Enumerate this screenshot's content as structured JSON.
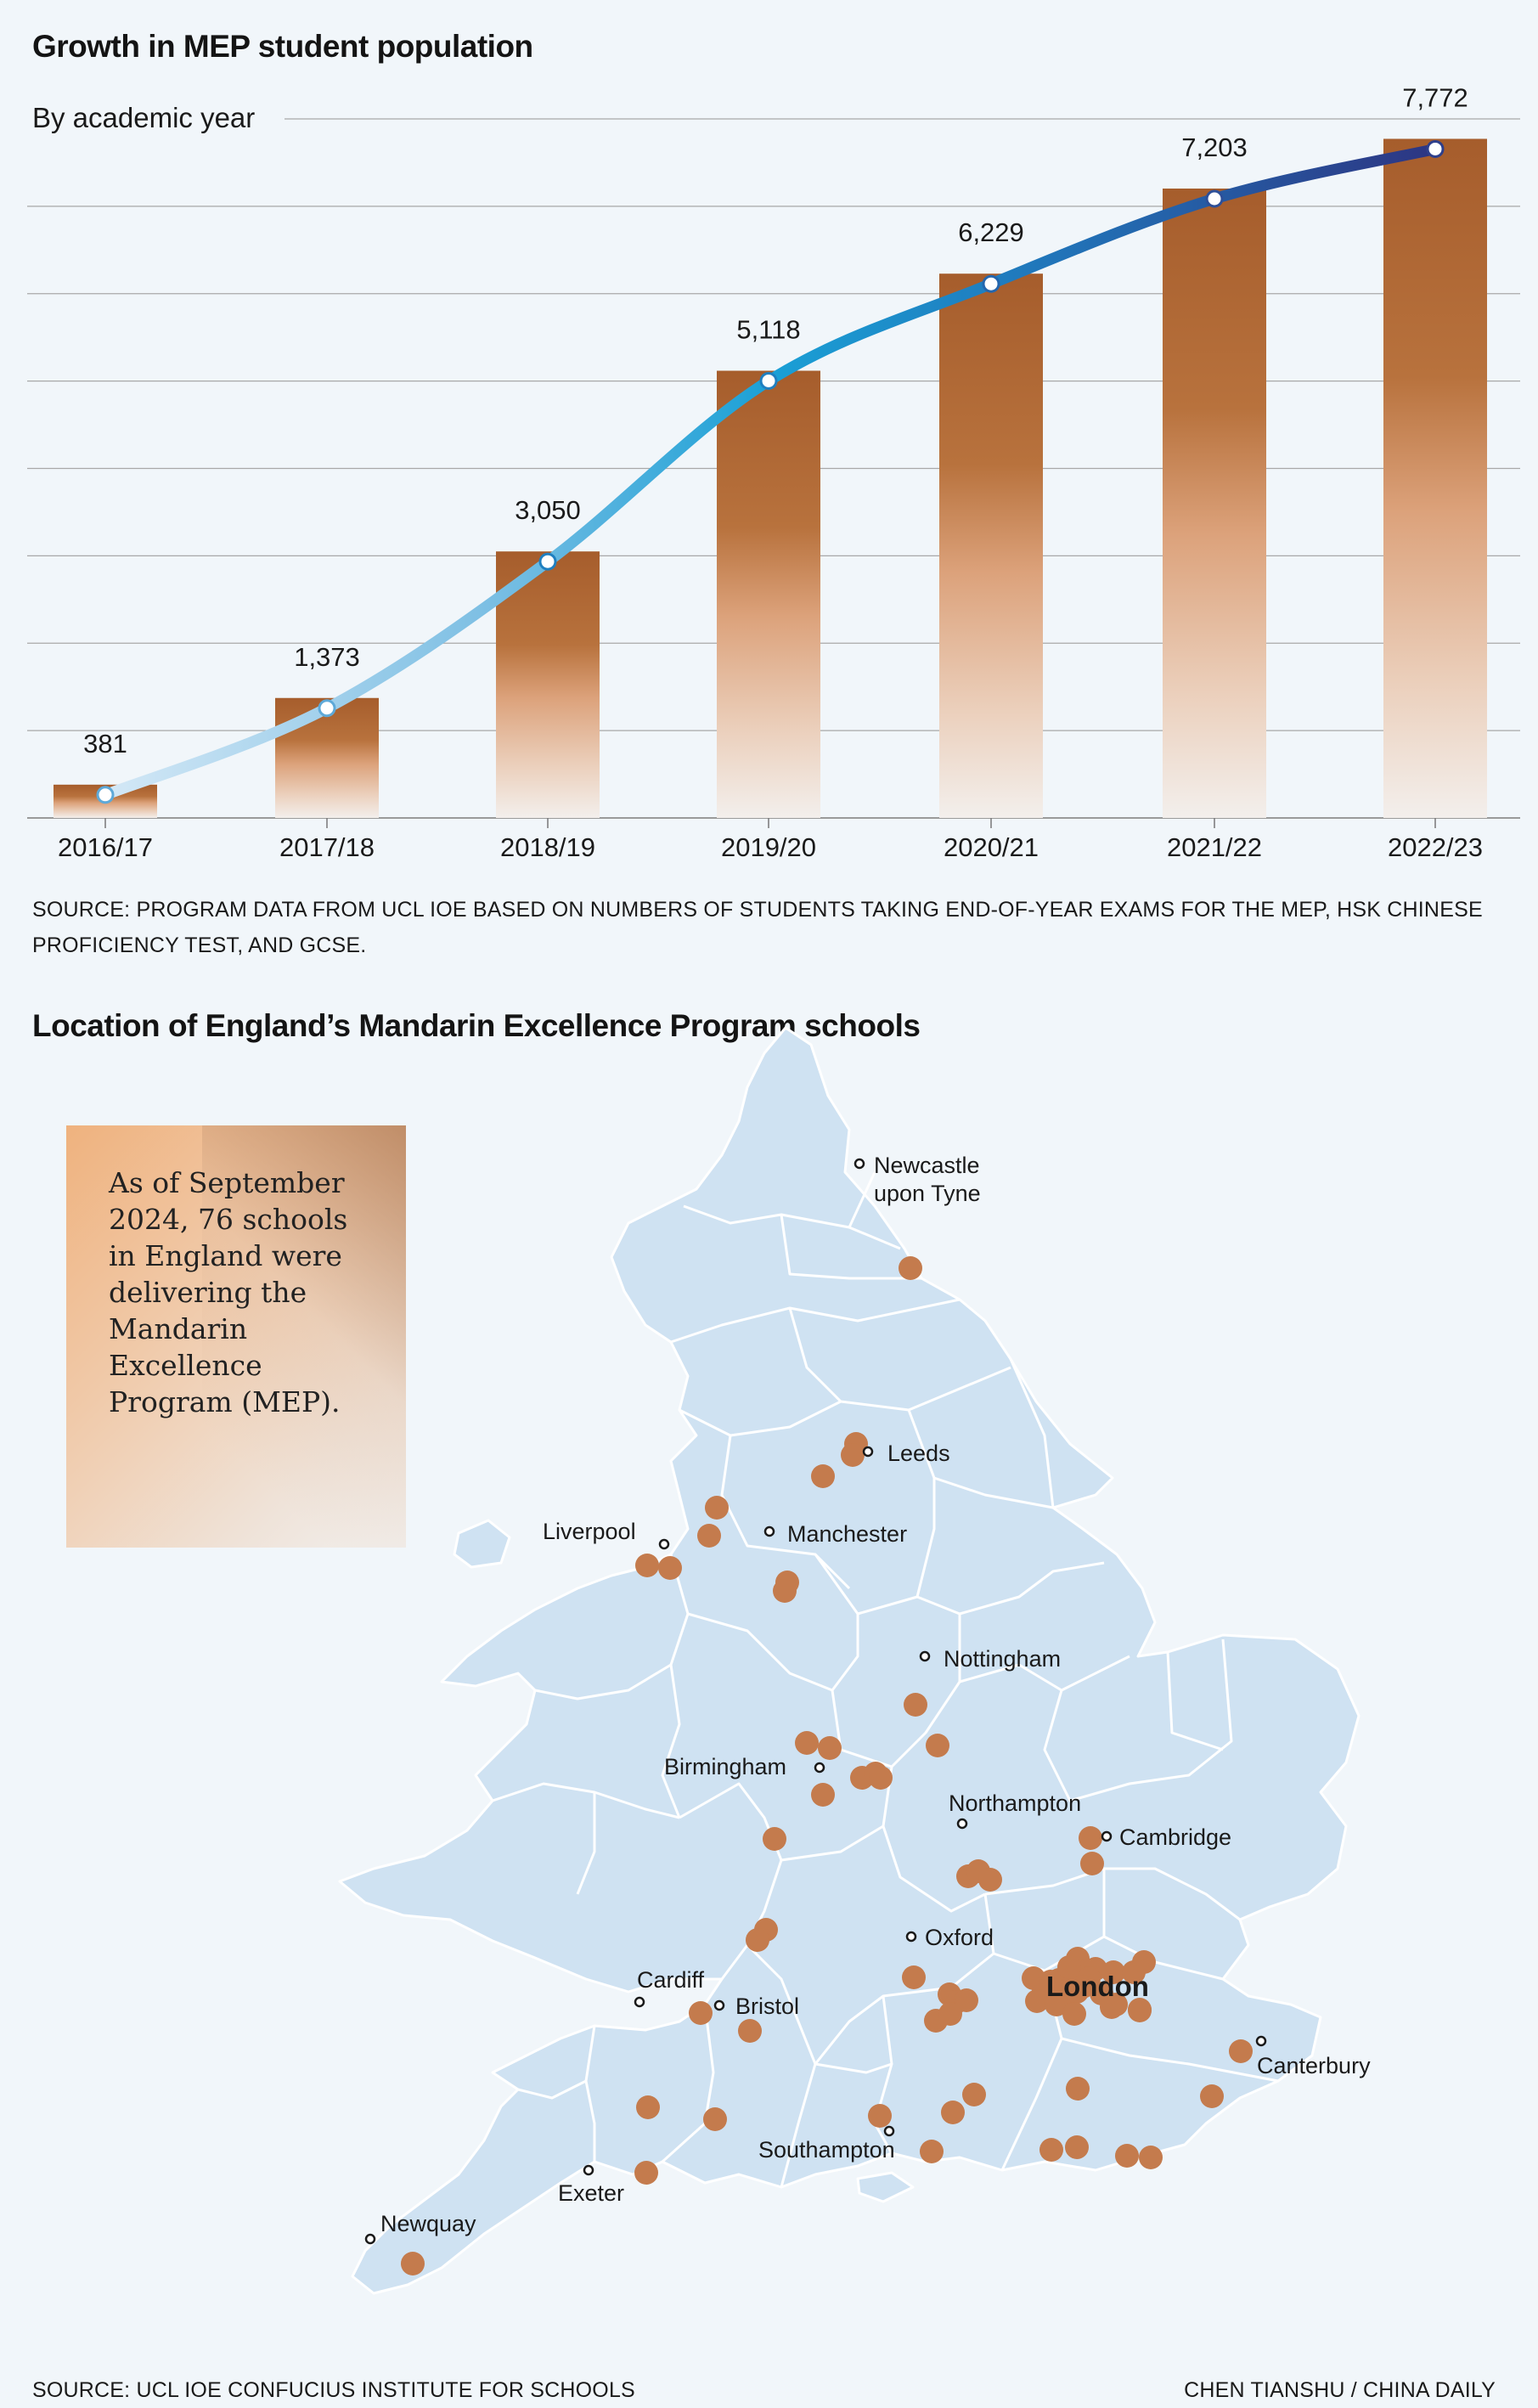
{
  "chart_title": "Growth in MEP student population",
  "chart_source": "SOURCE: PROGRAM DATA FROM UCL IOE BASED ON NUMBERS OF STUDENTS TAKING END-OF-YEAR EXAMS FOR THE MEP, HSK CHINESE PROFICIENCY TEST, AND GCSE.",
  "chart_data": {
    "type": "bar",
    "title": "Growth in MEP student population",
    "subtitle": "By academic year",
    "categories": [
      "2016/17",
      "2017/18",
      "2018/19",
      "2019/20",
      "2020/21",
      "2021/22",
      "2022/23"
    ],
    "values": [
      381,
      1373,
      3050,
      5118,
      6229,
      7203,
      7772
    ],
    "value_labels": [
      "381",
      "1,373",
      "3,050",
      "5,118",
      "6,229",
      "7,203",
      "7,772"
    ],
    "ylim": [
      0,
      8000
    ],
    "overlay": "line",
    "grid": true,
    "xlabel": "",
    "ylabel": ""
  },
  "map": {
    "title": "Location of England’s Mandarin Excellence Program schools",
    "callout": "As of September 2024, 76 schools in England were delivering the Mandarin Excellence Program (MEP).",
    "cities": [
      {
        "name": "Newcastle upon Tyne"
      },
      {
        "name": "Leeds"
      },
      {
        "name": "Manchester"
      },
      {
        "name": "Liverpool"
      },
      {
        "name": "Nottingham"
      },
      {
        "name": "Birmingham"
      },
      {
        "name": "Northampton"
      },
      {
        "name": "Cambridge"
      },
      {
        "name": "Oxford"
      },
      {
        "name": "London"
      },
      {
        "name": "Cardiff"
      },
      {
        "name": "Bristol"
      },
      {
        "name": "Canterbury"
      },
      {
        "name": "Southampton"
      },
      {
        "name": "Exeter"
      },
      {
        "name": "Newquay"
      }
    ],
    "school_count": 76
  },
  "footer": {
    "source": "SOURCE: UCL IOE CONFUCIUS INSTITUTE FOR SCHOOLS",
    "credit": "CHEN TIANSHU / CHINA DAILY"
  },
  "colors": {
    "bar_top": "#a8602c",
    "bar_bottom": "#f2ece8",
    "line_start": "#cfe6f5",
    "line_mid": "#1e9fd4",
    "line_end": "#2b3580",
    "dot": "#c47b4d",
    "land": "#cfe2f2",
    "background": "#f1f6fa"
  }
}
